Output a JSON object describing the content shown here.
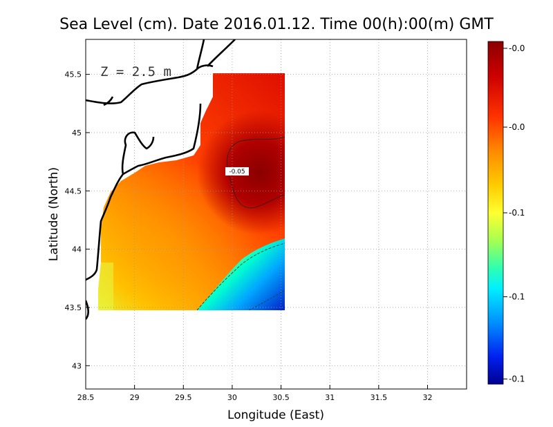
{
  "chart_data": {
    "type": "heatmap",
    "title": "Sea Level (cm). Date 2016.01.12. Time 00(h):00(m) GMT",
    "xlabel": "Longitude (East)",
    "ylabel": "Latitude (North)",
    "xlim": [
      28.5,
      32.4
    ],
    "ylim": [
      42.8,
      45.8
    ],
    "xticks": [
      "28.5",
      "29",
      "29.5",
      "30",
      "30.5",
      "31",
      "31.5",
      "32"
    ],
    "xtick_values": [
      28.5,
      29,
      29.5,
      30,
      30.5,
      31,
      31.5,
      32
    ],
    "yticks": [
      "43",
      "43.5",
      "44",
      "44.5",
      "45",
      "45.5"
    ],
    "ytick_values": [
      43,
      43.5,
      44,
      44.5,
      45,
      45.5
    ],
    "grid": true,
    "annotation": "Z = 2.5 m",
    "contour_label": "-0.05",
    "colorbar": {
      "ticks": [
        "-0.0",
        "-0.0",
        "-0.1",
        "-0.1",
        "-0.1"
      ],
      "colors": [
        "#8b0000",
        "#d40000",
        "#ff3c00",
        "#ff8c00",
        "#ffd000",
        "#ffff33",
        "#99ff55",
        "#33ffaa",
        "#00ffff",
        "#00aaff",
        "#0055ff",
        "#0000dd",
        "#000088"
      ]
    },
    "field": {
      "lon_range": [
        28.6,
        30.55
      ],
      "lat_range": [
        43.5,
        45.5
      ],
      "description_values": {
        "max_region_value": -0.03,
        "min_region_value": -0.14
      }
    }
  }
}
